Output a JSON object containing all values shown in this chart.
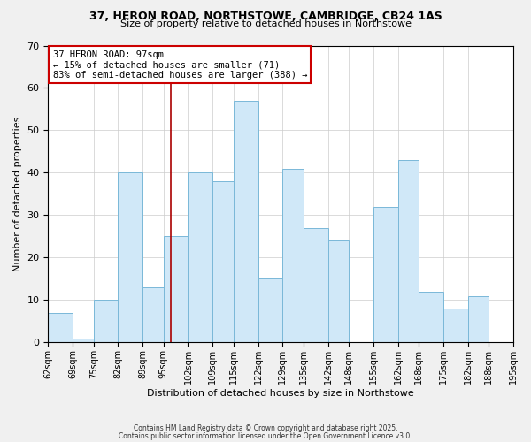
{
  "title": "37, HERON ROAD, NORTHSTOWE, CAMBRIDGE, CB24 1AS",
  "subtitle": "Size of property relative to detached houses in Northstowe",
  "xlabel": "Distribution of detached houses by size in Northstowe",
  "ylabel": "Number of detached properties",
  "bins": [
    62,
    69,
    75,
    82,
    89,
    95,
    102,
    109,
    115,
    122,
    129,
    135,
    142,
    148,
    155,
    162,
    168,
    175,
    182,
    188,
    195
  ],
  "counts": [
    7,
    1,
    10,
    40,
    13,
    25,
    40,
    38,
    57,
    15,
    41,
    27,
    24,
    0,
    32,
    43,
    12,
    8,
    11,
    0
  ],
  "bar_color": "#d0e8f8",
  "bar_edge_color": "#7ab8d8",
  "property_line_x": 97,
  "property_line_color": "#aa0000",
  "annotation_title": "37 HERON ROAD: 97sqm",
  "annotation_line1": "← 15% of detached houses are smaller (71)",
  "annotation_line2": "83% of semi-detached houses are larger (388) →",
  "annotation_box_color": "#cc0000",
  "ylim": [
    0,
    70
  ],
  "yticks": [
    0,
    10,
    20,
    30,
    40,
    50,
    60,
    70
  ],
  "footnote1": "Contains HM Land Registry data © Crown copyright and database right 2025.",
  "footnote2": "Contains public sector information licensed under the Open Government Licence v3.0.",
  "bg_color": "#f0f0f0",
  "plot_bg_color": "#ffffff",
  "grid_color": "#cccccc"
}
